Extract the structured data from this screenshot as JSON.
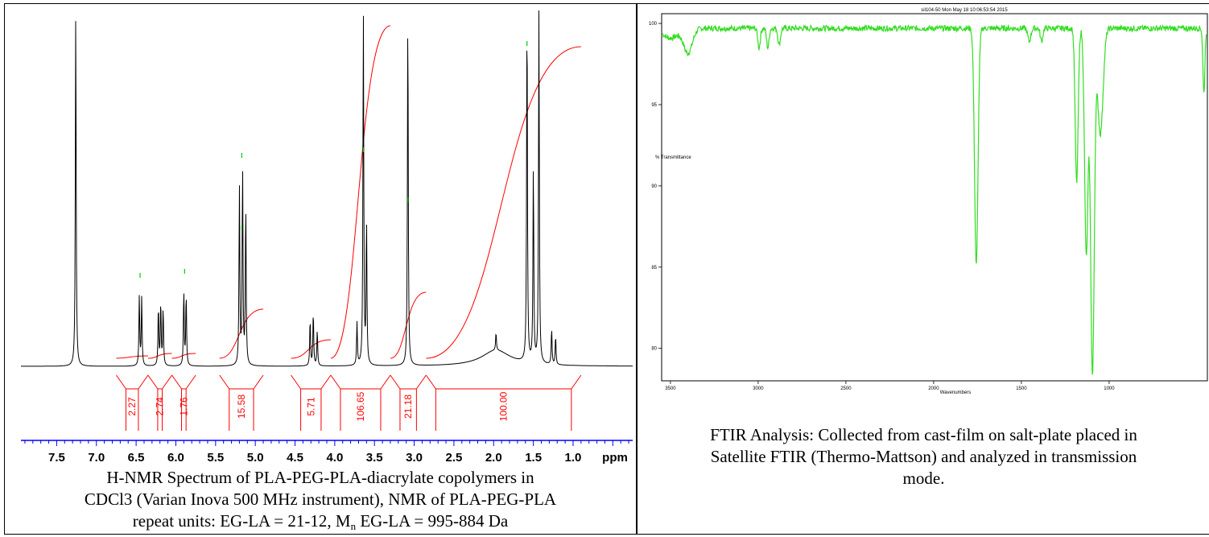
{
  "nmr": {
    "chart_data": {
      "type": "line",
      "title": "",
      "xlabel": "ppm",
      "ylabel": "",
      "xlim": [
        7.95,
        0.25
      ],
      "x_ticks": [
        7.5,
        7.0,
        6.5,
        6.0,
        5.5,
        5.0,
        4.5,
        4.0,
        3.5,
        3.0,
        2.5,
        2.0,
        1.5,
        1.0
      ],
      "x_tick_labels": [
        "7.5",
        "7.0",
        "6.5",
        "6.0",
        "5.5",
        "5.0",
        "4.5",
        "4.0",
        "3.5",
        "3.0",
        "2.5",
        "2.0",
        "1.5",
        "1.0"
      ],
      "x_unit": "ppm",
      "spectrum_peaks": [
        {
          "ppm": 7.26,
          "height": 1.0
        },
        {
          "ppm": 6.46,
          "height": 0.195
        },
        {
          "ppm": 6.43,
          "height": 0.19
        },
        {
          "ppm": 6.22,
          "height": 0.165
        },
        {
          "ppm": 6.19,
          "height": 0.175
        },
        {
          "ppm": 6.16,
          "height": 0.16
        },
        {
          "ppm": 5.9,
          "height": 0.21
        },
        {
          "ppm": 5.87,
          "height": 0.2
        },
        {
          "ppm": 5.2,
          "height": 0.5
        },
        {
          "ppm": 5.16,
          "height": 0.55
        },
        {
          "ppm": 5.12,
          "height": 0.45
        },
        {
          "ppm": 4.31,
          "height": 0.13
        },
        {
          "ppm": 4.27,
          "height": 0.15
        },
        {
          "ppm": 4.22,
          "height": 0.1
        },
        {
          "ppm": 3.72,
          "height": 0.12
        },
        {
          "ppm": 3.64,
          "height": 1.0
        },
        {
          "ppm": 3.6,
          "height": 0.4
        },
        {
          "ppm": 3.08,
          "height": 1.0
        },
        {
          "ppm": 1.97,
          "height": 0.05
        },
        {
          "ppm": 1.58,
          "height": 1.0
        },
        {
          "ppm": 1.5,
          "height": 0.55
        },
        {
          "ppm": 1.43,
          "height": 1.0
        },
        {
          "ppm": 1.27,
          "height": 0.1
        },
        {
          "ppm": 1.22,
          "height": 0.08
        }
      ],
      "integrals": [
        {
          "label": "2.27",
          "from": 6.75,
          "to": 6.35
        },
        {
          "label": "2.74",
          "from": 6.35,
          "to": 6.05
        },
        {
          "label": "1.76",
          "from": 6.05,
          "to": 5.75
        },
        {
          "label": "15.58",
          "from": 5.45,
          "to": 4.9
        },
        {
          "label": "5.71",
          "from": 4.55,
          "to": 4.05
        },
        {
          "label": "106.65",
          "from": 4.05,
          "to": 3.3
        },
        {
          "label": "21.18",
          "from": 3.3,
          "to": 2.85
        },
        {
          "label": "100.00",
          "from": 2.85,
          "to": 0.9
        }
      ],
      "colors": {
        "spectrum": "#000000",
        "integral": "#ff0000",
        "axis": "#0000ff",
        "peak_marker": "#00cc00"
      }
    },
    "caption": {
      "line1": "H-NMR Spectrum of PLA-PEG-PLA-diacrylate copolymers in",
      "line2": "CDCl3 (Varian Inova 500 MHz instrument), NMR of PLA-PEG-PLA",
      "line3a": "repeat units: EG-LA = 21-12, M",
      "line3sub": "n",
      "line3b": " EG-LA = 995-884 Da"
    }
  },
  "ftir": {
    "chart_data": {
      "type": "line",
      "title": "sil104-50    Mon May 18 10:06:53:54 2015",
      "xlabel": "Wavenumbers",
      "ylabel": "% Transmittance",
      "xlim": [
        3550,
        440
      ],
      "ylim": [
        78,
        100.6
      ],
      "x_ticks": [
        3500,
        3000,
        2500,
        2000,
        1500,
        1000
      ],
      "x_tick_labels": [
        "3500",
        "3000",
        "2500",
        "2000",
        "1500",
        "1000"
      ],
      "y_ticks": [
        100,
        95,
        90,
        85,
        80
      ],
      "y_tick_labels": [
        "100",
        "95",
        "90",
        "85",
        "80"
      ],
      "baseline": 99.7,
      "bands": [
        {
          "wavenumber": 3500,
          "depth": 0.6,
          "width": 60
        },
        {
          "wavenumber": 3400,
          "depth": 1.5,
          "width": 35
        },
        {
          "wavenumber": 2995,
          "depth": 1.2,
          "width": 10
        },
        {
          "wavenumber": 2945,
          "depth": 1.2,
          "width": 10
        },
        {
          "wavenumber": 2880,
          "depth": 1.0,
          "width": 10
        },
        {
          "wavenumber": 1757,
          "depth": 14.6,
          "width": 14
        },
        {
          "wavenumber": 1455,
          "depth": 0.8,
          "width": 12
        },
        {
          "wavenumber": 1385,
          "depth": 0.8,
          "width": 10
        },
        {
          "wavenumber": 1185,
          "depth": 9.5,
          "width": 12
        },
        {
          "wavenumber": 1130,
          "depth": 14.0,
          "width": 14
        },
        {
          "wavenumber": 1095,
          "depth": 21.3,
          "width": 15
        },
        {
          "wavenumber": 1050,
          "depth": 6.5,
          "width": 22
        },
        {
          "wavenumber": 460,
          "depth": 4.0,
          "width": 8
        }
      ],
      "colors": {
        "spectrum": "#33dd22",
        "axis": "#000000"
      }
    },
    "caption": {
      "line1": "FTIR Analysis: Collected from cast-film on salt-plate placed in",
      "line2": "Satellite FTIR (Thermo-Mattson) and analyzed in transmission",
      "line3": "mode."
    }
  }
}
